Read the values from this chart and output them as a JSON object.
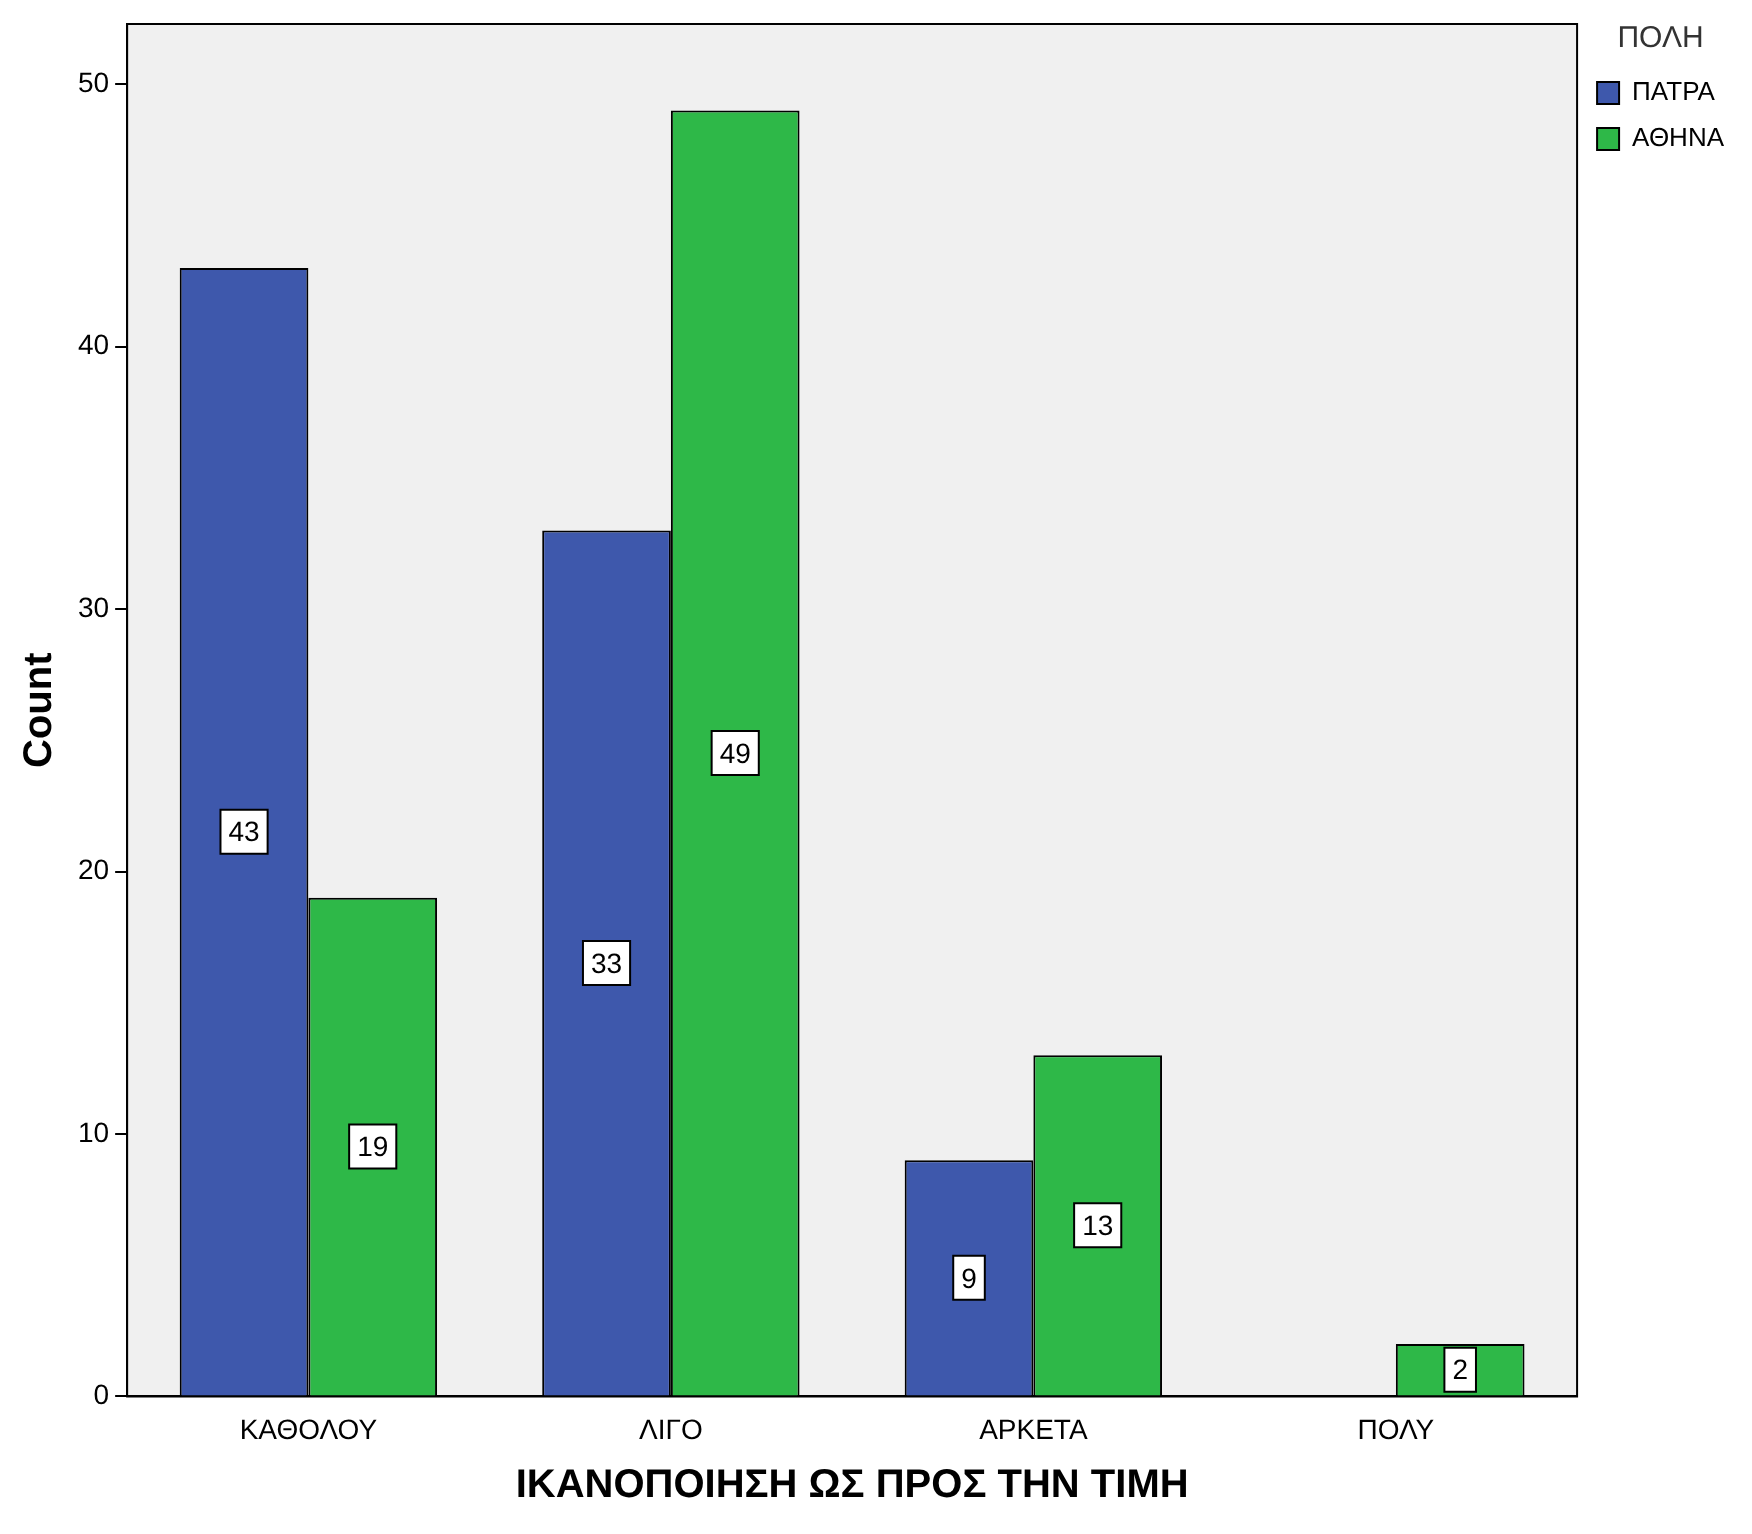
{
  "chart_data": {
    "type": "bar",
    "xlabel": "ΙΚΑΝΟΠΟΙΗΣΗ ΩΣ ΠΡΟΣ ΤΗΝ ΤΙΜΗ",
    "ylabel": "Count",
    "legend_title": "ΠΟΛΗ",
    "legend": "top right",
    "categories": [
      "ΚΑΘΟΛΟΥ",
      "ΛΙΓΟ",
      "ΑΡΚΕΤΑ",
      "ΠΟΛΥ"
    ],
    "series": [
      {
        "name": "ΠΑΤΡΑ",
        "color": "#3e58ac",
        "values": [
          43,
          33,
          9,
          null
        ]
      },
      {
        "name": "ΑΘΗΝΑ",
        "color": "#2eb848",
        "values": [
          19,
          49,
          13,
          2
        ]
      }
    ],
    "ylim": [
      0,
      52.3
    ],
    "yticks": [
      0,
      10,
      20,
      30,
      40,
      50
    ],
    "grid": false,
    "data_labels": true
  }
}
